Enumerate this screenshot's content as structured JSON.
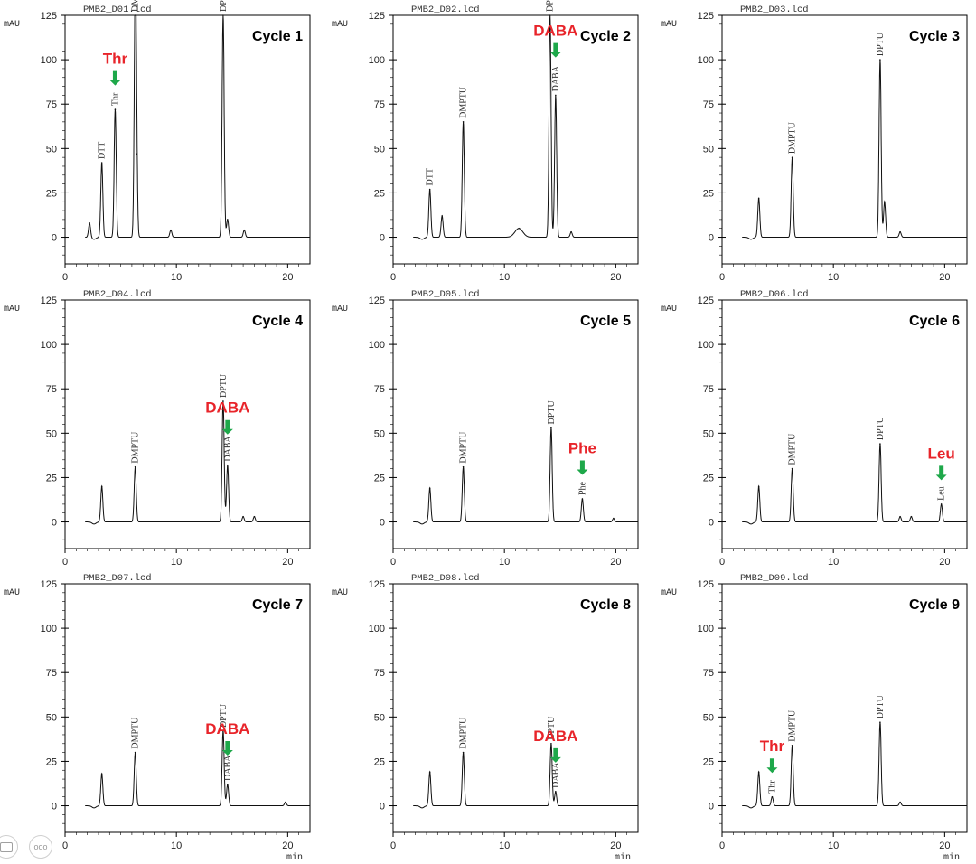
{
  "shared": {
    "y_unit": "mAU",
    "x_unit": "min",
    "y_ticks": [
      0,
      25,
      50,
      75,
      100,
      125
    ],
    "x_ticks": [
      0,
      10,
      20
    ],
    "xlim": [
      0,
      22
    ],
    "ylim": [
      -15,
      125
    ]
  },
  "chart_data": [
    {
      "type": "line",
      "file": "PMB2_D01.lcd",
      "title": "Cycle 1",
      "annotation": {
        "text": "Thr",
        "color": "#e8242a",
        "x": 4.5,
        "y": 72
      },
      "peaks": [
        {
          "label": "DTT",
          "x": 3.3,
          "y": 42
        },
        {
          "label": "Thr",
          "x": 4.5,
          "y": 72
        },
        {
          "label": "DMPTU",
          "x": 6.3,
          "y": 125
        },
        {
          "label": "",
          "x": 6.4,
          "y": 47
        },
        {
          "label": "",
          "x": 2.2,
          "y": 8
        },
        {
          "label": "",
          "x": 9.5,
          "y": 4
        },
        {
          "label": "DPTU",
          "x": 14.2,
          "y": 125
        },
        {
          "label": "",
          "x": 14.6,
          "y": 10
        },
        {
          "label": "",
          "x": 16.1,
          "y": 4
        }
      ]
    },
    {
      "type": "line",
      "file": "PMB2_D02.lcd",
      "title": "Cycle 2",
      "annotation": {
        "text": "DABA",
        "color": "#e8242a",
        "x": 14.6,
        "y": 85
      },
      "peaks": [
        {
          "label": "DTT",
          "x": 3.3,
          "y": 27
        },
        {
          "label": "",
          "x": 4.4,
          "y": 12
        },
        {
          "label": "DMPTU",
          "x": 6.3,
          "y": 65
        },
        {
          "label": "",
          "x": 11.3,
          "y": 5
        },
        {
          "label": "DPTU",
          "x": 14.1,
          "y": 125
        },
        {
          "label": "DABA",
          "x": 14.6,
          "y": 80
        },
        {
          "label": "",
          "x": 16.0,
          "y": 3
        }
      ]
    },
    {
      "type": "line",
      "file": "PMB2_D03.lcd",
      "title": "Cycle 3",
      "annotation": null,
      "peaks": [
        {
          "label": "",
          "x": 3.3,
          "y": 22
        },
        {
          "label": "DMPTU",
          "x": 6.3,
          "y": 45
        },
        {
          "label": "DPTU",
          "x": 14.2,
          "y": 100
        },
        {
          "label": "",
          "x": 14.6,
          "y": 20
        },
        {
          "label": "",
          "x": 16.0,
          "y": 3
        }
      ]
    },
    {
      "type": "line",
      "file": "PMB2_D04.lcd",
      "title": "Cycle 4",
      "annotation": {
        "text": "DABA",
        "color": "#e8242a",
        "x": 14.6,
        "y": 33
      },
      "peaks": [
        {
          "label": "",
          "x": 3.3,
          "y": 20
        },
        {
          "label": "DMPTU",
          "x": 6.3,
          "y": 31
        },
        {
          "label": "DPTU",
          "x": 14.2,
          "y": 68
        },
        {
          "label": "DABA",
          "x": 14.6,
          "y": 32
        },
        {
          "label": "",
          "x": 16.0,
          "y": 3
        },
        {
          "label": "",
          "x": 17.0,
          "y": 3
        }
      ]
    },
    {
      "type": "line",
      "file": "PMB2_D05.lcd",
      "title": "Cycle 5",
      "annotation": {
        "text": "Phe",
        "color": "#e8242a",
        "x": 17.0,
        "y": 13
      },
      "peaks": [
        {
          "label": "",
          "x": 3.3,
          "y": 19
        },
        {
          "label": "DMPTU",
          "x": 6.3,
          "y": 31
        },
        {
          "label": "DPTU",
          "x": 14.2,
          "y": 53
        },
        {
          "label": "Phe",
          "x": 17.0,
          "y": 13
        },
        {
          "label": "",
          "x": 19.8,
          "y": 2
        }
      ]
    },
    {
      "type": "line",
      "file": "PMB2_D06.lcd",
      "title": "Cycle 6",
      "annotation": {
        "text": "Leu",
        "color": "#e8242a",
        "x": 19.7,
        "y": 10
      },
      "peaks": [
        {
          "label": "",
          "x": 3.3,
          "y": 20
        },
        {
          "label": "DMPTU",
          "x": 6.3,
          "y": 30
        },
        {
          "label": "DPTU",
          "x": 14.2,
          "y": 44
        },
        {
          "label": "",
          "x": 16.0,
          "y": 3
        },
        {
          "label": "",
          "x": 17.0,
          "y": 3
        },
        {
          "label": "Leu",
          "x": 19.7,
          "y": 10
        }
      ]
    },
    {
      "type": "line",
      "file": "PMB2_D07.lcd",
      "title": "Cycle 7",
      "annotation": {
        "text": "DABA",
        "color": "#e8242a",
        "x": 14.6,
        "y": 12
      },
      "peaks": [
        {
          "label": "",
          "x": 3.3,
          "y": 18
        },
        {
          "label": "DMPTU",
          "x": 6.3,
          "y": 30
        },
        {
          "label": "DPTU",
          "x": 14.2,
          "y": 42
        },
        {
          "label": "DABA",
          "x": 14.6,
          "y": 12
        },
        {
          "label": "",
          "x": 19.8,
          "y": 2
        }
      ]
    },
    {
      "type": "line",
      "file": "PMB2_D08.lcd",
      "title": "Cycle 8",
      "annotation": {
        "text": "DABA",
        "color": "#e8242a",
        "x": 14.6,
        "y": 8
      },
      "peaks": [
        {
          "label": "",
          "x": 3.3,
          "y": 19
        },
        {
          "label": "DMPTU",
          "x": 6.3,
          "y": 30
        },
        {
          "label": "DPTU",
          "x": 14.2,
          "y": 35
        },
        {
          "label": "DABA",
          "x": 14.6,
          "y": 8
        }
      ]
    },
    {
      "type": "line",
      "file": "PMB2_D09.lcd",
      "title": "Cycle 9",
      "annotation": {
        "text": "Thr",
        "color": "#e8242a",
        "x": 4.5,
        "y": 5
      },
      "peaks": [
        {
          "label": "",
          "x": 3.3,
          "y": 19
        },
        {
          "label": "Thr",
          "x": 4.5,
          "y": 5
        },
        {
          "label": "DMPTU",
          "x": 6.3,
          "y": 34
        },
        {
          "label": "DPTU",
          "x": 14.2,
          "y": 47
        },
        {
          "label": "",
          "x": 16.0,
          "y": 2
        }
      ]
    }
  ],
  "style": {
    "annotation_color": "#e8242a",
    "arrow_color": "#1ea84a",
    "trace_color": "#111111",
    "axis_color": "#000000"
  },
  "controls": {
    "left_icon": "comment-icon",
    "right_icon": "more-icon",
    "right_label": "ooo"
  }
}
